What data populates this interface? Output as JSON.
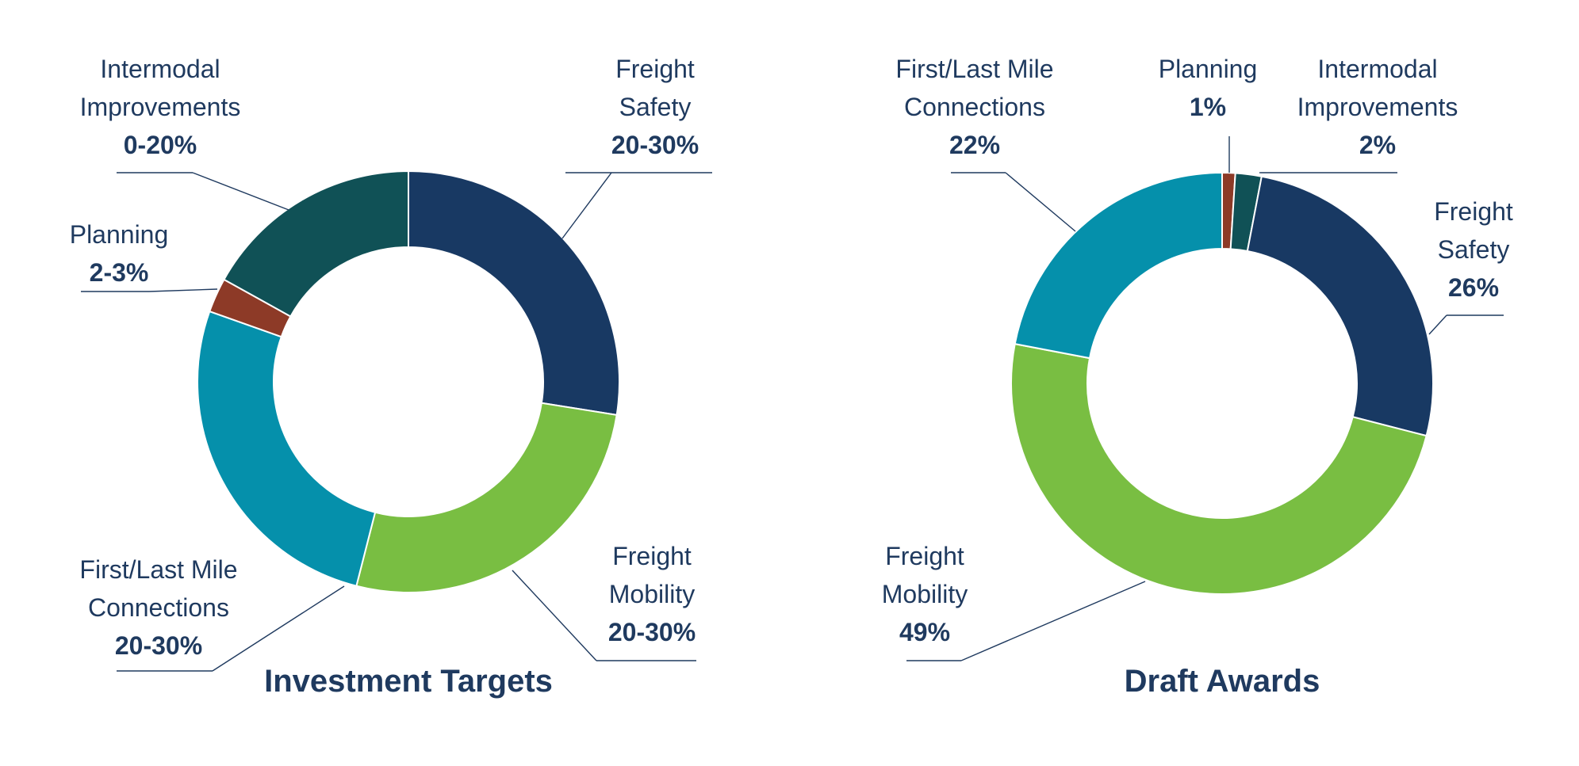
{
  "chart_data": [
    {
      "type": "pie",
      "title": "Investment Targets",
      "categories": [
        "Freight Safety",
        "Freight Mobility",
        "First/Last Mile Connections",
        "Planning",
        "Intermodal Improvements"
      ],
      "values": [
        26,
        25,
        25,
        2.5,
        16
      ],
      "value_labels": [
        "20-30%",
        "20-30%",
        "20-30%",
        "2-3%",
        "0-20%"
      ],
      "label_lines": [
        [
          "Freight",
          "Safety"
        ],
        [
          "Freight",
          "Mobility"
        ],
        [
          "First/Last Mile",
          "Connections"
        ],
        [
          "Planning"
        ],
        [
          "Intermodal",
          "Improvements"
        ]
      ],
      "colors": [
        "#183963",
        "#79be42",
        "#0590ab",
        "#8d3a27",
        "#105156"
      ]
    },
    {
      "type": "pie",
      "title": "Draft Awards",
      "categories": [
        "Planning",
        "Intermodal Improvements",
        "Freight Safety",
        "Freight Mobility",
        "First/Last Mile Connections"
      ],
      "values": [
        1,
        2,
        26,
        49,
        22
      ],
      "value_labels": [
        "1%",
        "2%",
        "26%",
        "49%",
        "22%"
      ],
      "label_lines": [
        [
          "Planning"
        ],
        [
          "Intermodal",
          "Improvements"
        ],
        [
          "Freight",
          "Safety"
        ],
        [
          "Freight",
          "Mobility"
        ],
        [
          "First/Last Mile",
          "Connections"
        ]
      ],
      "colors": [
        "#8d3a27",
        "#105156",
        "#183963",
        "#79be42",
        "#0590ab"
      ]
    }
  ]
}
